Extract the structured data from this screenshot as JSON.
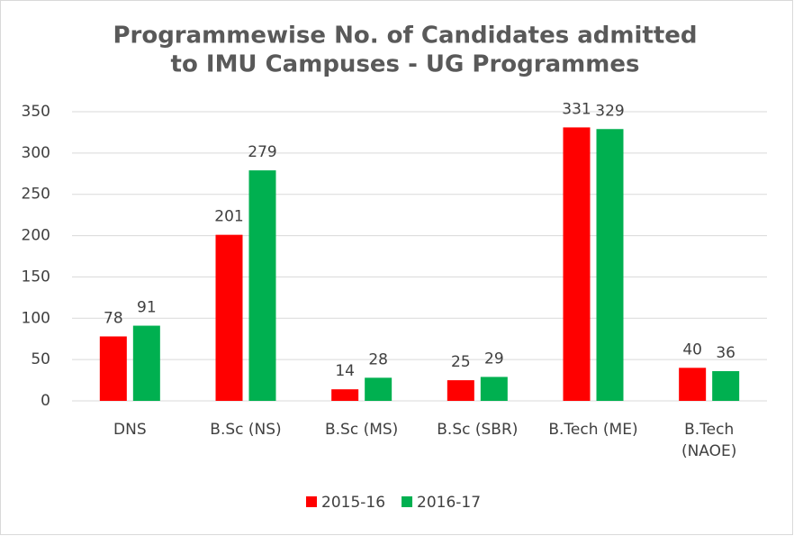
{
  "chart_data": {
    "type": "bar",
    "title": [
      "Programmewise No. of Candidates admitted",
      "to IMU Campuses - UG Programmes"
    ],
    "categories": [
      "DNS",
      "B.Sc (NS)",
      "B.Sc (MS)",
      "B.Sc (SBR)",
      "B.Tech (ME)",
      "B.Tech (NAOE)"
    ],
    "series": [
      {
        "name": "2015-16",
        "color": "#ff0000",
        "values": [
          78,
          201,
          14,
          25,
          331,
          40
        ]
      },
      {
        "name": "2016-17",
        "color": "#00b050",
        "values": [
          91,
          279,
          28,
          29,
          329,
          36
        ]
      }
    ],
    "ylim": [
      0,
      350
    ],
    "yticks": [
      0,
      50,
      100,
      150,
      200,
      250,
      300,
      350
    ],
    "grid": true,
    "legend": "bottom"
  }
}
